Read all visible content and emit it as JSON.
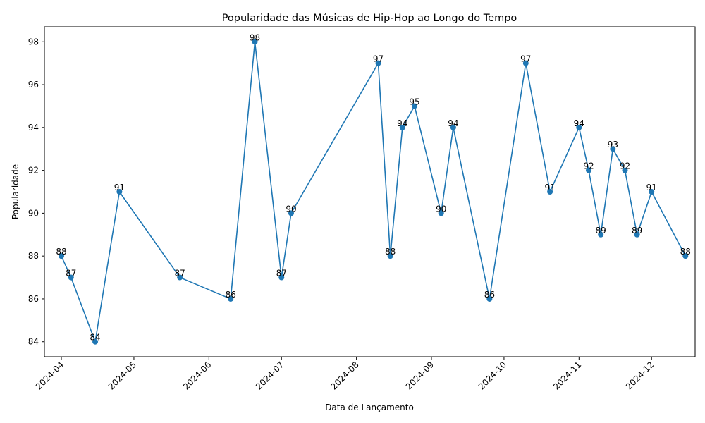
{
  "chart_data": {
    "type": "line",
    "title": "Popularidade das Músicas de Hip-Hop ao Longo do Tempo",
    "xlabel": "Data de Lançamento",
    "ylabel": "Popularidade",
    "x_tick_labels": [
      "2024-04",
      "2024-05",
      "2024-06",
      "2024-07",
      "2024-08",
      "2024-09",
      "2024-10",
      "2024-11",
      "2024-12"
    ],
    "y_ticks": [
      84,
      86,
      88,
      90,
      92,
      94,
      96,
      98
    ],
    "ylim": [
      83.3,
      98.7
    ],
    "xlim": [
      "2024-03-25",
      "2024-12-19"
    ],
    "grid": false,
    "series": [
      {
        "color": "#1f77b4",
        "marker": "circle",
        "points": [
          {
            "x": "2024-04-01",
            "y": 88
          },
          {
            "x": "2024-04-05",
            "y": 87
          },
          {
            "x": "2024-04-15",
            "y": 84
          },
          {
            "x": "2024-04-25",
            "y": 91
          },
          {
            "x": "2024-05-20",
            "y": 87
          },
          {
            "x": "2024-06-10",
            "y": 86
          },
          {
            "x": "2024-06-20",
            "y": 98
          },
          {
            "x": "2024-07-01",
            "y": 87
          },
          {
            "x": "2024-07-05",
            "y": 90
          },
          {
            "x": "2024-08-10",
            "y": 97
          },
          {
            "x": "2024-08-15",
            "y": 88
          },
          {
            "x": "2024-08-20",
            "y": 94
          },
          {
            "x": "2024-08-25",
            "y": 95
          },
          {
            "x": "2024-09-05",
            "y": 90
          },
          {
            "x": "2024-09-10",
            "y": 94
          },
          {
            "x": "2024-09-25",
            "y": 86
          },
          {
            "x": "2024-10-10",
            "y": 97
          },
          {
            "x": "2024-10-20",
            "y": 91
          },
          {
            "x": "2024-11-01",
            "y": 94
          },
          {
            "x": "2024-11-05",
            "y": 92
          },
          {
            "x": "2024-11-10",
            "y": 89
          },
          {
            "x": "2024-11-15",
            "y": 93
          },
          {
            "x": "2024-11-20",
            "y": 92
          },
          {
            "x": "2024-11-25",
            "y": 89
          },
          {
            "x": "2024-12-01",
            "y": 91
          },
          {
            "x": "2024-12-15",
            "y": 88
          }
        ]
      }
    ]
  }
}
